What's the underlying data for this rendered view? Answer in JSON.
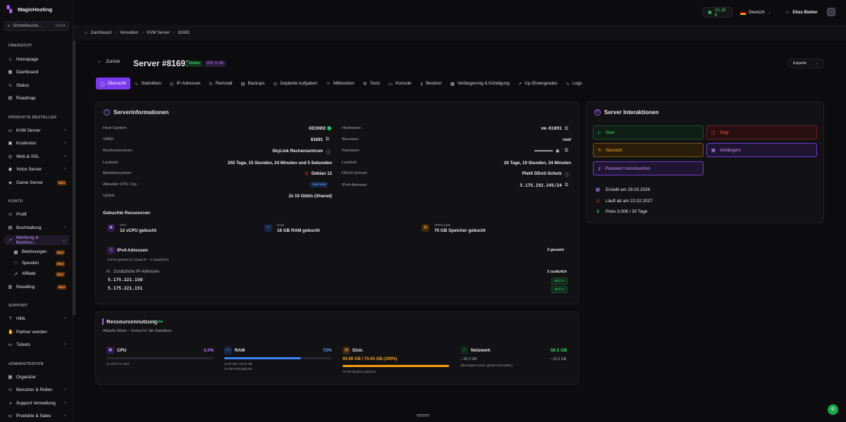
{
  "app": {
    "name": "MagicHosting"
  },
  "search": {
    "placeholder": "Schnellsuche...",
    "shortcut": "Ctrl+K"
  },
  "sidebar": {
    "sections": [
      "ÜBERSICHT",
      "PRODUKTE BESTELLEN",
      "KONTO",
      "SUPPORT",
      "ADMINISTRATION"
    ],
    "items": [
      {
        "label": "Homepage",
        "icon": "home-icon"
      },
      {
        "label": "Dashboard",
        "icon": "grid-icon"
      },
      {
        "label": "Status",
        "icon": "pulse-icon"
      },
      {
        "label": "Roadmap",
        "icon": "map-icon"
      },
      {
        "label": "KVM Server",
        "icon": "server-icon"
      },
      {
        "label": "Kostentos",
        "icon": "box-icon"
      },
      {
        "label": "Web & SSL",
        "icon": "globe-icon"
      },
      {
        "label": "Voice Server",
        "icon": "mic-icon"
      },
      {
        "label": "Game Server",
        "icon": "gamepad-icon",
        "badge": "NEU"
      },
      {
        "label": "Profil",
        "icon": "user-icon"
      },
      {
        "label": "Buchhaltung",
        "icon": "receipt-icon"
      },
      {
        "label": "Werbung & Belohnu...",
        "icon": "trend-icon"
      },
      {
        "label": "Belohnungen",
        "icon": "gift-icon",
        "badge": "NEU"
      },
      {
        "label": "Spenden",
        "icon": "heart-icon",
        "badge": "NEU"
      },
      {
        "label": "Affiliate",
        "icon": "trend-icon",
        "badge": "NEU"
      },
      {
        "label": "Reselling",
        "icon": "store-icon",
        "badge": "NEU"
      },
      {
        "label": "Hilfe",
        "icon": "help-icon"
      },
      {
        "label": "Partner werden",
        "icon": "handshake-icon"
      },
      {
        "label": "Tickets",
        "icon": "ticket-icon"
      },
      {
        "label": "Organizer",
        "icon": "calendar-icon"
      },
      {
        "label": "Benutzer & Rollen",
        "icon": "users-icon"
      },
      {
        "label": "Support Verwaltung",
        "icon": "headset-icon"
      },
      {
        "label": "Produkte & Sales",
        "icon": "cart-icon"
      }
    ]
  },
  "topbar": {
    "balance": "10,18 €",
    "language": "Deutsch",
    "user": "Elias Bieber"
  },
  "breadcrumb": [
    "Dashboard",
    "Verwalten",
    "KVM Server",
    "81691"
  ],
  "header": {
    "back": "Zurück",
    "title": "Server #81691",
    "status": "Online",
    "cpu_badge": "CPU 0.0%",
    "mode": "Experte"
  },
  "tabs": [
    {
      "label": "Übersicht",
      "icon": "info-icon"
    },
    {
      "label": "Statistiken",
      "icon": "chart-icon"
    },
    {
      "label": "IP-Adressen",
      "icon": "globe-icon"
    },
    {
      "label": "Reinstall",
      "icon": "refresh-icon"
    },
    {
      "label": "Backups",
      "icon": "archive-icon"
    },
    {
      "label": "Geplante Aufgaben",
      "icon": "clock-icon"
    },
    {
      "label": "Mitbesitzer",
      "icon": "users-icon"
    },
    {
      "label": "Tools",
      "icon": "tools-icon"
    },
    {
      "label": "Konsole",
      "icon": "monitor-icon"
    },
    {
      "label": "Besitzer",
      "icon": "key-icon"
    },
    {
      "label": "Verlängerung & Kündigung",
      "icon": "calendar-icon"
    },
    {
      "label": "Up-/Downgrades",
      "icon": "arrow-icon"
    },
    {
      "label": "Logs",
      "icon": "log-icon"
    }
  ],
  "serverinfo": {
    "title": "Serverinformationen",
    "left": [
      {
        "label": "Host-System:",
        "value": "XEON02"
      },
      {
        "label": "VMID:",
        "value": "81691"
      },
      {
        "label": "Rechenzentrum:",
        "value": "SkyLink Rechenzentrum"
      },
      {
        "label": "Laufzeit:",
        "value": "255 Tage, 15 Stunden, 24 Minuten und 5 Sekunden"
      },
      {
        "label": "Betriebssystem:",
        "value": "Debian 12"
      },
      {
        "label": "Aktueller CPU-Typ",
        "value": "Intel Xeon"
      },
      {
        "label": "Uplink:",
        "value": "2x 10 Gbit/s (Shared)"
      }
    ],
    "right": [
      {
        "label": "Hostname:",
        "value": "vm-81691"
      },
      {
        "label": "Benutzer:",
        "value": "root"
      },
      {
        "label": "Passwort:",
        "value": "••••••••••••"
      },
      {
        "label": "Laufzeit:",
        "value": "26 Tage, 19 Stunden, 34 Minuten"
      },
      {
        "label": "DDoS-Schutz:",
        "value": "PletX DDoS-Schutz"
      },
      {
        "label": "IPv4-Adresse:",
        "value": "5.175.192.245/24"
      }
    ],
    "resources_title": "Gebuchte Ressourcen",
    "resources": [
      {
        "small": "CPU",
        "big": "12 vCPU gebucht"
      },
      {
        "small": "RAM",
        "big": "16 GB RAM gebucht"
      },
      {
        "small": "SPEICHER",
        "big": "70 GB Speicher gebucht"
      }
    ],
    "ipv4": {
      "title": "IPv4-Adressen",
      "count": "3 gesamt",
      "summary": "3 IPv4 gesamt (1 Haupt-IP · 2 zusätzlich)",
      "extra_title": "Zusätzliche IP-Adressen",
      "extra_count": "2 zusätzlich",
      "ips": [
        {
          "ip": "5.175.221.150",
          "status": "aktiv"
        },
        {
          "ip": "5.175.221.151",
          "status": "aktiv"
        }
      ]
    }
  },
  "interactions": {
    "title": "Server Interaktionen",
    "buttons": [
      "Start",
      "Stop",
      "Neustart",
      "Verlängern",
      "Passwort zurücksetzen"
    ],
    "created": "Erstellt am 29.03.2026",
    "expires": "Läuft ab am 22.02.2027",
    "price": "Preis 3.00€ / 30 Tage"
  },
  "usage": {
    "title": "Ressourcennutzung",
    "live": "• Live",
    "subtitle": "Aktuelle Werte – Verlauf im Tab Statistiken",
    "cpu": {
      "label": "CPU",
      "value": "0.0%",
      "fraction": 0.0,
      "note": "12 vCPU im Tarif"
    },
    "ram": {
      "label": "RAM",
      "value": "72%",
      "fraction": 0.72,
      "line1": "11.57 GB / 16.00 GB",
      "line2": "16 GB RAM gebucht"
    },
    "disk": {
      "label": "Disk:",
      "value": "69.99 GB / 70.00 GB (100%)",
      "fraction": 1.0,
      "note": "70 GB Speicher gebucht"
    },
    "net": {
      "label": "Netzwerk",
      "value": "56.5 GB",
      "down": "↓ 36.2 GB",
      "up": "↑ 20.3 GB",
      "note": "Übertragene Daten gesamt (kumulativ)"
    }
  },
  "colors": {
    "accent": "#7c3aed",
    "green": "#22c55e",
    "orange": "#f59e0b",
    "blue": "#3b82f6",
    "red": "#ef4444"
  }
}
